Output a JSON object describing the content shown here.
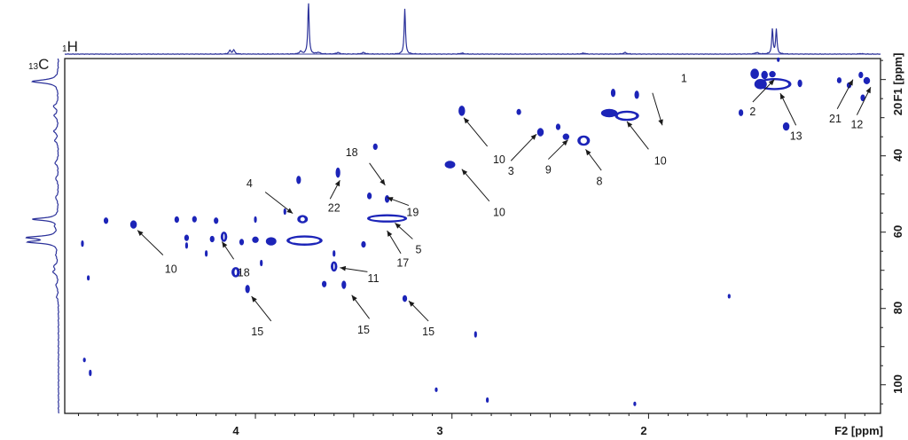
{
  "chart_data": {
    "type": "heatmap",
    "title": "",
    "xlabel": "F2 [ppm]",
    "ylabel": "F1 [ppm]",
    "x_nucleus": {
      "mass": "1",
      "symbol": "H"
    },
    "y_nucleus": {
      "mass": "13",
      "symbol": "C"
    },
    "xlim": [
      4.97,
      0.82
    ],
    "ylim": [
      107.5,
      14.5
    ],
    "x_ticks": [
      "4",
      "3",
      "2"
    ],
    "y_ticks": [
      "20",
      "40",
      "60",
      "80",
      "100"
    ],
    "grid": false,
    "colors": {
      "contour": "#1c24b8",
      "trace": "#3a3f9e",
      "axis": "#1a1a1a"
    },
    "peaks": [
      {
        "h": 1.46,
        "c": 18.5,
        "w": 0.04,
        "hc": 2.5,
        "ring": false
      },
      {
        "h": 1.41,
        "c": 18.8,
        "w": 0.03,
        "hc": 2.0,
        "ring": false
      },
      {
        "h": 1.36,
        "c": 21.2,
        "w": 0.17,
        "hc": 3.0,
        "ring": true
      },
      {
        "h": 1.43,
        "c": 21.2,
        "w": 0.06,
        "hc": 2.5,
        "ring": false
      },
      {
        "h": 1.37,
        "c": 18.6,
        "w": 0.03,
        "hc": 1.5,
        "ring": false
      },
      {
        "h": 1.23,
        "c": 21.0,
        "w": 0.02,
        "hc": 1.8,
        "ring": false
      },
      {
        "h": 1.3,
        "c": 32.3,
        "w": 0.03,
        "hc": 2.0,
        "ring": false
      },
      {
        "h": 1.53,
        "c": 28.7,
        "w": 0.02,
        "hc": 1.6,
        "ring": false
      },
      {
        "h": 0.92,
        "c": 18.8,
        "w": 0.02,
        "hc": 1.5,
        "ring": false
      },
      {
        "h": 0.89,
        "c": 20.3,
        "w": 0.03,
        "hc": 1.7,
        "ring": false
      },
      {
        "h": 1.03,
        "c": 20.2,
        "w": 0.02,
        "hc": 1.4,
        "ring": false
      },
      {
        "h": 0.98,
        "c": 21.5,
        "w": 0.02,
        "hc": 1.4,
        "ring": false
      },
      {
        "h": 0.91,
        "c": 24.8,
        "w": 0.02,
        "hc": 1.6,
        "ring": false
      },
      {
        "h": 2.11,
        "c": 29.5,
        "w": 0.12,
        "hc": 2.5,
        "ring": true
      },
      {
        "h": 2.2,
        "c": 28.8,
        "w": 0.08,
        "hc": 2.0,
        "ring": false
      },
      {
        "h": 2.18,
        "c": 23.5,
        "w": 0.02,
        "hc": 2.0,
        "ring": false
      },
      {
        "h": 2.06,
        "c": 24.0,
        "w": 0.02,
        "hc": 2.0,
        "ring": false
      },
      {
        "h": 2.95,
        "c": 28.2,
        "w": 0.03,
        "hc": 2.5,
        "ring": false
      },
      {
        "h": 2.55,
        "c": 33.8,
        "w": 0.03,
        "hc": 2.0,
        "ring": false
      },
      {
        "h": 2.33,
        "c": 36.0,
        "w": 0.06,
        "hc": 2.5,
        "ring": true
      },
      {
        "h": 2.42,
        "c": 35.0,
        "w": 0.03,
        "hc": 1.5,
        "ring": false
      },
      {
        "h": 2.46,
        "c": 32.4,
        "w": 0.02,
        "hc": 1.5,
        "ring": false
      },
      {
        "h": 2.66,
        "c": 28.5,
        "w": 0.02,
        "hc": 1.4,
        "ring": false
      },
      {
        "h": 3.01,
        "c": 42.3,
        "w": 0.05,
        "hc": 1.8,
        "ring": false
      },
      {
        "h": 3.39,
        "c": 37.6,
        "w": 0.02,
        "hc": 1.5,
        "ring": false
      },
      {
        "h": 3.58,
        "c": 44.4,
        "w": 0.02,
        "hc": 2.5,
        "ring": false
      },
      {
        "h": 3.78,
        "c": 46.3,
        "w": 0.02,
        "hc": 2.0,
        "ring": false
      },
      {
        "h": 3.42,
        "c": 50.5,
        "w": 0.02,
        "hc": 1.6,
        "ring": false
      },
      {
        "h": 3.33,
        "c": 51.3,
        "w": 0.02,
        "hc": 1.8,
        "ring": false
      },
      {
        "h": 3.33,
        "c": 56.4,
        "w": 0.2,
        "hc": 2.0,
        "ring": true
      },
      {
        "h": 3.76,
        "c": 56.6,
        "w": 0.05,
        "hc": 2.0,
        "ring": true
      },
      {
        "h": 3.85,
        "c": 54.6,
        "w": 0.01,
        "hc": 1.5,
        "ring": false
      },
      {
        "h": 3.75,
        "c": 62.2,
        "w": 0.18,
        "hc": 2.5,
        "ring": true
      },
      {
        "h": 3.92,
        "c": 62.4,
        "w": 0.05,
        "hc": 2.0,
        "ring": false
      },
      {
        "h": 4.16,
        "c": 61.2,
        "w": 0.03,
        "hc": 2.5,
        "ring": true
      },
      {
        "h": 4.0,
        "c": 62.0,
        "w": 0.03,
        "hc": 1.5,
        "ring": false
      },
      {
        "h": 4.07,
        "c": 62.6,
        "w": 0.02,
        "hc": 1.5,
        "ring": false
      },
      {
        "h": 4.1,
        "c": 70.5,
        "w": 0.04,
        "hc": 2.5,
        "ring": true
      },
      {
        "h": 4.04,
        "c": 74.9,
        "w": 0.02,
        "hc": 2.0,
        "ring": false
      },
      {
        "h": 3.6,
        "c": 69.0,
        "w": 0.03,
        "hc": 2.5,
        "ring": true
      },
      {
        "h": 3.55,
        "c": 73.8,
        "w": 0.02,
        "hc": 2.0,
        "ring": false
      },
      {
        "h": 3.65,
        "c": 73.6,
        "w": 0.02,
        "hc": 1.5,
        "ring": false
      },
      {
        "h": 3.45,
        "c": 63.2,
        "w": 0.02,
        "hc": 1.5,
        "ring": false
      },
      {
        "h": 3.6,
        "c": 65.6,
        "w": 0.01,
        "hc": 1.5,
        "ring": false
      },
      {
        "h": 3.24,
        "c": 77.4,
        "w": 0.02,
        "hc": 1.6,
        "ring": false
      },
      {
        "h": 2.88,
        "c": 86.8,
        "w": 0.01,
        "hc": 1.5,
        "ring": false
      },
      {
        "h": 4.62,
        "c": 58.0,
        "w": 0.03,
        "hc": 2.0,
        "ring": false
      },
      {
        "h": 4.76,
        "c": 57.0,
        "w": 0.02,
        "hc": 1.5,
        "ring": false
      },
      {
        "h": 4.4,
        "c": 56.7,
        "w": 0.02,
        "hc": 1.5,
        "ring": false
      },
      {
        "h": 4.31,
        "c": 56.6,
        "w": 0.02,
        "hc": 1.5,
        "ring": false
      },
      {
        "h": 4.2,
        "c": 57.0,
        "w": 0.02,
        "hc": 1.5,
        "ring": false
      },
      {
        "h": 4.35,
        "c": 61.5,
        "w": 0.02,
        "hc": 1.5,
        "ring": false
      },
      {
        "h": 4.22,
        "c": 61.8,
        "w": 0.02,
        "hc": 1.5,
        "ring": false
      },
      {
        "h": 4.35,
        "c": 63.5,
        "w": 0.01,
        "hc": 1.5,
        "ring": false
      },
      {
        "h": 4.25,
        "c": 65.6,
        "w": 0.01,
        "hc": 1.5,
        "ring": false
      },
      {
        "h": 3.97,
        "c": 68.1,
        "w": 0.01,
        "hc": 1.5,
        "ring": false
      },
      {
        "h": 4.0,
        "c": 56.7,
        "w": 0.01,
        "hc": 1.5,
        "ring": false
      },
      {
        "h": 4.88,
        "c": 63.0,
        "w": 0.01,
        "hc": 1.5,
        "ring": false
      },
      {
        "h": 4.85,
        "c": 72.0,
        "w": 0.01,
        "hc": 1.2,
        "ring": false
      },
      {
        "h": 4.87,
        "c": 93.5,
        "w": 0.01,
        "hc": 1.0,
        "ring": false
      },
      {
        "h": 4.84,
        "c": 96.9,
        "w": 0.01,
        "hc": 1.5,
        "ring": false
      },
      {
        "h": 3.08,
        "c": 101.3,
        "w": 0.01,
        "hc": 1.0,
        "ring": false
      },
      {
        "h": 2.82,
        "c": 104.0,
        "w": 0.01,
        "hc": 1.2,
        "ring": false
      },
      {
        "h": 2.07,
        "c": 105.0,
        "w": 0.01,
        "hc": 1.0,
        "ring": false
      },
      {
        "h": 1.59,
        "c": 76.8,
        "w": 0.01,
        "hc": 1.0,
        "ring": false
      },
      {
        "h": 1.34,
        "c": 14.8,
        "w": 0.01,
        "hc": 1.0,
        "ring": false
      }
    ],
    "annotations": [
      {
        "text": "1",
        "tx": 1.82,
        "tc": 19.7,
        "ax": 1.98,
        "ac": 23.5,
        "bx": 1.93,
        "bc": 32.0
      },
      {
        "text": "2",
        "tx": 1.47,
        "tc": 28.5,
        "ax": 1.47,
        "ac": 25.9,
        "bx": 1.36,
        "bc": 20.0
      },
      {
        "text": "13",
        "tx": 1.25,
        "tc": 34.8,
        "ax": 1.25,
        "ac": 32.0,
        "bx": 1.33,
        "bc": 23.6
      },
      {
        "text": "21",
        "tx": 1.05,
        "tc": 30.3,
        "ax": 1.04,
        "ac": 27.7,
        "bx": 0.96,
        "bc": 20.0
      },
      {
        "text": "12",
        "tx": 0.94,
        "tc": 31.8,
        "ax": 0.94,
        "ac": 29.3,
        "bx": 0.87,
        "bc": 22.0
      },
      {
        "text": "10",
        "tx": 2.76,
        "tc": 41.0,
        "ax": 2.82,
        "ac": 37.5,
        "bx": 2.94,
        "bc": 30.0
      },
      {
        "text": "3",
        "tx": 2.7,
        "tc": 44.0,
        "ax": 2.7,
        "ac": 41.3,
        "bx": 2.57,
        "bc": 34.3
      },
      {
        "text": "9",
        "tx": 2.51,
        "tc": 43.7,
        "ax": 2.51,
        "ac": 40.9,
        "bx": 2.41,
        "bc": 35.8
      },
      {
        "text": "8",
        "tx": 2.25,
        "tc": 46.7,
        "ax": 2.24,
        "ac": 43.8,
        "bx": 2.32,
        "bc": 38.3
      },
      {
        "text": "10",
        "tx": 1.94,
        "tc": 41.3,
        "ax": 2.0,
        "ac": 38.3,
        "bx": 2.11,
        "bc": 31.0
      },
      {
        "text": "10",
        "tx": 2.76,
        "tc": 54.8,
        "ax": 2.81,
        "ac": 51.9,
        "bx": 2.95,
        "bc": 43.5
      },
      {
        "text": "18",
        "tx": 3.51,
        "tc": 39.1,
        "ax": 3.42,
        "ac": 41.9,
        "bx": 3.34,
        "bc": 47.7
      },
      {
        "text": "22",
        "tx": 3.6,
        "tc": 53.7,
        "ax": 3.62,
        "ac": 51.3,
        "bx": 3.57,
        "bc": 46.4
      },
      {
        "text": "19",
        "tx": 3.2,
        "tc": 54.8,
        "ax": 3.22,
        "ac": 53.0,
        "bx": 3.33,
        "bc": 50.9
      },
      {
        "text": "4",
        "tx": 4.03,
        "tc": 47.3,
        "ax": 3.95,
        "ac": 49.5,
        "bx": 3.81,
        "bc": 55.1
      },
      {
        "text": "5",
        "tx": 3.17,
        "tc": 64.6,
        "ax": 3.2,
        "ac": 61.8,
        "bx": 3.29,
        "bc": 57.6
      },
      {
        "text": "17",
        "tx": 3.25,
        "tc": 68.1,
        "ax": 3.26,
        "ac": 65.6,
        "bx": 3.33,
        "bc": 59.6
      },
      {
        "text": "18",
        "tx": 4.06,
        "tc": 70.6,
        "ax": 4.11,
        "ac": 67.1,
        "bx": 4.17,
        "bc": 62.5
      },
      {
        "text": "10",
        "tx": 4.43,
        "tc": 69.7,
        "ax": 4.47,
        "ac": 66.0,
        "bx": 4.6,
        "bc": 59.5
      },
      {
        "text": "11",
        "tx": 3.4,
        "tc": 72.2,
        "ax": 3.43,
        "ac": 70.4,
        "bx": 3.57,
        "bc": 69.3
      },
      {
        "text": "15",
        "tx": 3.99,
        "tc": 86.1,
        "ax": 3.92,
        "ac": 83.3,
        "bx": 4.02,
        "bc": 76.8
      },
      {
        "text": "15",
        "tx": 3.45,
        "tc": 85.6,
        "ax": 3.42,
        "ac": 82.7,
        "bx": 3.51,
        "bc": 76.5
      },
      {
        "text": "15",
        "tx": 3.12,
        "tc": 86.1,
        "ax": 3.12,
        "ac": 83.3,
        "bx": 3.22,
        "bc": 78.0
      }
    ],
    "h_trace": [
      {
        "ppm": 4.13,
        "height": 0.07,
        "width": 0.006
      },
      {
        "ppm": 4.11,
        "height": 0.08,
        "width": 0.006
      },
      {
        "ppm": 3.77,
        "height": 0.05,
        "width": 0.008
      },
      {
        "ppm": 3.73,
        "height": 1.0,
        "width": 0.004
      },
      {
        "ppm": 3.68,
        "height": 0.03,
        "width": 0.01
      },
      {
        "ppm": 3.58,
        "height": 0.03,
        "width": 0.01
      },
      {
        "ppm": 3.45,
        "height": 0.03,
        "width": 0.01
      },
      {
        "ppm": 3.24,
        "height": 0.88,
        "width": 0.004
      },
      {
        "ppm": 2.95,
        "height": 0.02,
        "width": 0.01
      },
      {
        "ppm": 2.33,
        "height": 0.02,
        "width": 0.01
      },
      {
        "ppm": 2.12,
        "height": 0.03,
        "width": 0.01
      },
      {
        "ppm": 1.45,
        "height": 0.03,
        "width": 0.01
      },
      {
        "ppm": 1.37,
        "height": 0.48,
        "width": 0.004
      },
      {
        "ppm": 1.35,
        "height": 0.48,
        "width": 0.004
      },
      {
        "ppm": 0.92,
        "height": 0.01,
        "width": 0.01
      }
    ],
    "c_trace": [
      {
        "ppm": 20.5,
        "height": 0.78,
        "width": 0.5
      },
      {
        "ppm": 27.0,
        "height": 0.14,
        "width": 0.6
      },
      {
        "ppm": 29.5,
        "height": 0.12,
        "width": 0.6
      },
      {
        "ppm": 33.5,
        "height": 0.13,
        "width": 0.6
      },
      {
        "ppm": 36.0,
        "height": 0.1,
        "width": 0.6
      },
      {
        "ppm": 41.8,
        "height": 0.1,
        "width": 0.6
      },
      {
        "ppm": 46.0,
        "height": 0.08,
        "width": 0.6
      },
      {
        "ppm": 51.0,
        "height": 0.08,
        "width": 0.6
      },
      {
        "ppm": 56.6,
        "height": 0.76,
        "width": 0.4
      },
      {
        "ppm": 58.5,
        "height": 0.06,
        "width": 0.5
      },
      {
        "ppm": 61.4,
        "height": 0.88,
        "width": 0.4
      },
      {
        "ppm": 62.6,
        "height": 0.84,
        "width": 0.4
      },
      {
        "ppm": 66.0,
        "height": 0.06,
        "width": 0.6
      },
      {
        "ppm": 69.0,
        "height": 0.12,
        "width": 0.6
      },
      {
        "ppm": 70.5,
        "height": 0.14,
        "width": 0.6
      },
      {
        "ppm": 74.0,
        "height": 0.07,
        "width": 0.6
      },
      {
        "ppm": 77.0,
        "height": 0.05,
        "width": 0.6
      }
    ]
  }
}
